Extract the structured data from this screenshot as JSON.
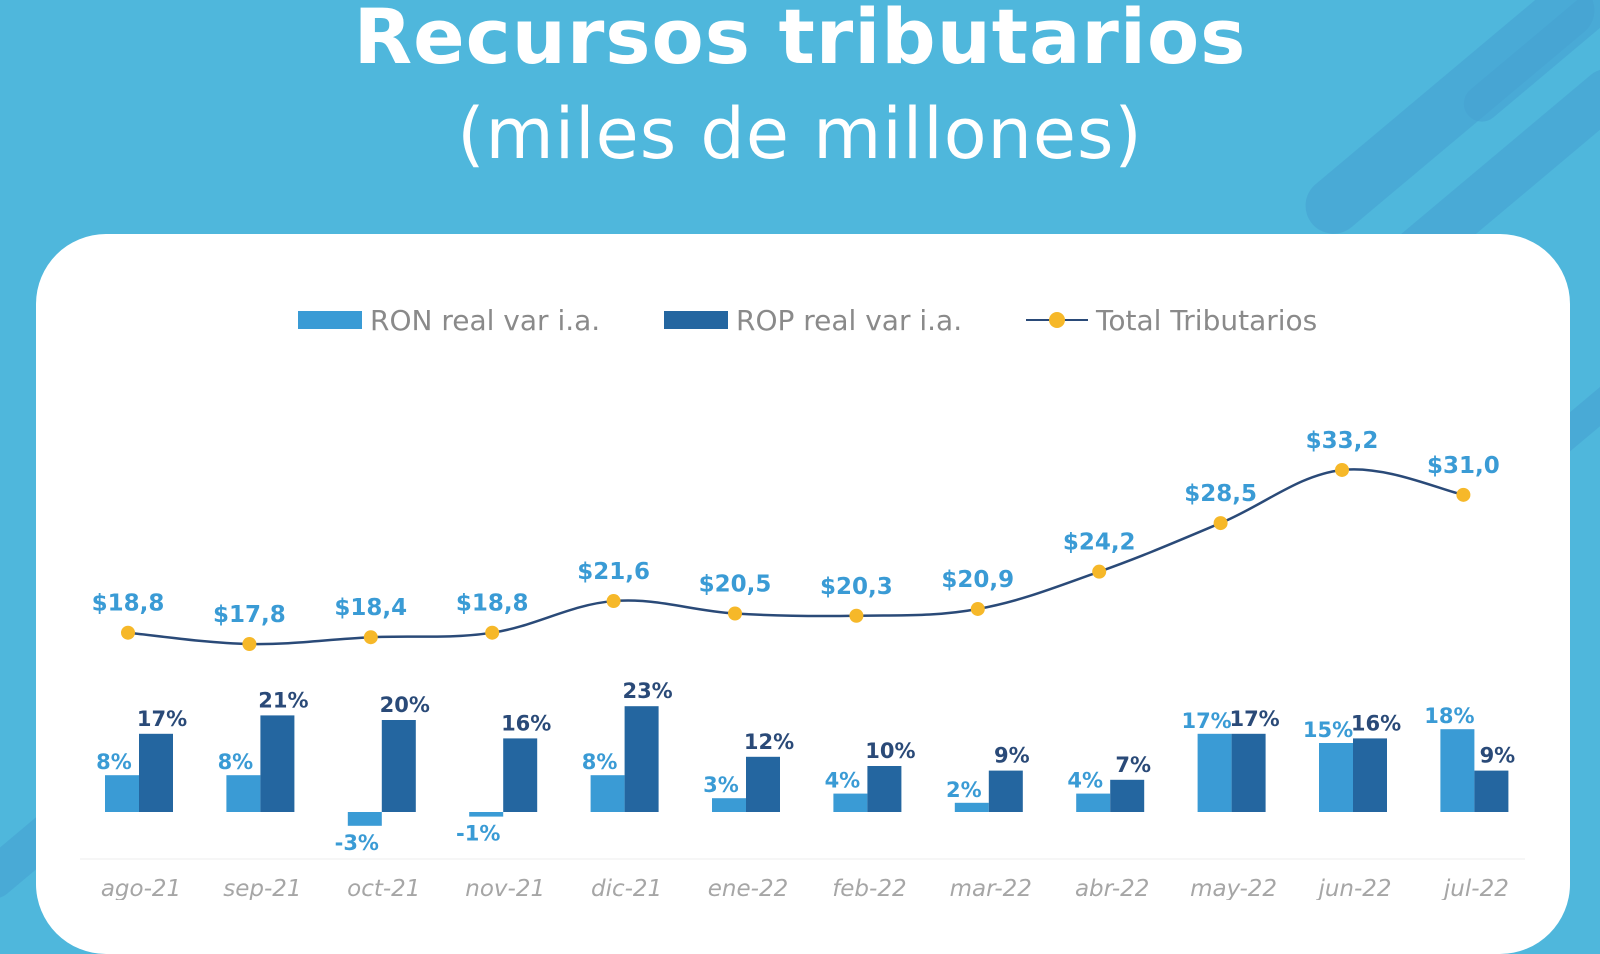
{
  "title": "Recursos tributarios",
  "subtitle": "(miles de millones)",
  "colors": {
    "background": "#4fb7dc",
    "ron": "#3a9bd5",
    "rop": "#2466a0",
    "line": "#2a4a78",
    "marker": "#f6b829",
    "total_label": "#3a9bd5",
    "ron_label": "#3a9bd5",
    "rop_label": "#2a4a78"
  },
  "chart_data": {
    "type": "bar",
    "categories": [
      "ago-21",
      "sep-21",
      "oct-21",
      "nov-21",
      "dic-21",
      "ene-22",
      "feb-22",
      "mar-22",
      "abr-22",
      "may-22",
      "jun-22",
      "jul-22"
    ],
    "series": [
      {
        "name": "RON real var i.a.",
        "type": "bar",
        "values": [
          8,
          8,
          -3,
          -1,
          8,
          3,
          4,
          2,
          4,
          17,
          15,
          18
        ],
        "labels": [
          "8%",
          "8%",
          "-3%",
          "-1%",
          "8%",
          "3%",
          "4%",
          "2%",
          "4%",
          "17%",
          "15%",
          "18%"
        ]
      },
      {
        "name": "ROP real var i.a.",
        "type": "bar",
        "values": [
          17,
          21,
          20,
          16,
          23,
          12,
          10,
          9,
          7,
          17,
          16,
          9
        ],
        "labels": [
          "17%",
          "21%",
          "20%",
          "16%",
          "23%",
          "12%",
          "10%",
          "9%",
          "7%",
          "17%",
          "16%",
          "9%"
        ]
      },
      {
        "name": "Total Tributarios",
        "type": "line",
        "values": [
          18.8,
          17.8,
          18.4,
          18.8,
          21.6,
          20.5,
          20.3,
          20.9,
          24.2,
          28.5,
          33.2,
          31.0
        ],
        "labels": [
          "$18,8",
          "$17,8",
          "$18,4",
          "$18,8",
          "$21,6",
          "$20,5",
          "$20,3",
          "$20,9",
          "$24,2",
          "$28,5",
          "$33,2",
          "$31,0"
        ]
      }
    ],
    "legend_position": "top",
    "grid": false
  }
}
